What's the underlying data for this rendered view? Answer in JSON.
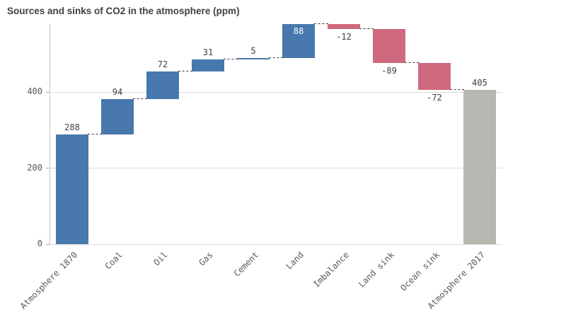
{
  "title": "Sources and sinks of CO2 in the atmosphere (ppm)",
  "colors": {
    "positive": "#4878ad",
    "negative": "#d0697e",
    "total": "#b8b8b3",
    "grid": "#dcdcdc",
    "axis": "#c4c4c4",
    "connector": "#404040",
    "value_label": "#404040",
    "tick_label": "#595959",
    "title_text": "#404040"
  },
  "chart_data": {
    "type": "bar",
    "subtype": "waterfall",
    "title": "Sources and sinks of CO2 in the atmosphere (ppm)",
    "categories": [
      "Atmosphere 1870",
      "Coal",
      "Oil",
      "Gas",
      "Cement",
      "Land",
      "Imbalance",
      "Land sink",
      "Ocean sink",
      "Atmosphere 2017"
    ],
    "values": [
      288,
      94,
      72,
      31,
      5,
      88,
      -12,
      -89,
      -72,
      405
    ],
    "bar_kinds": [
      "positive",
      "positive",
      "positive",
      "positive",
      "positive",
      "positive",
      "negative",
      "negative",
      "negative",
      "total"
    ],
    "value_labels": [
      "288",
      "94",
      "72",
      "31",
      "5",
      "88",
      "-12",
      "-89",
      "-72",
      "405"
    ],
    "cumulative": [
      288,
      382,
      454,
      485,
      490,
      578,
      566,
      477,
      405,
      405
    ],
    "yticks": [
      0,
      200,
      400
    ],
    "ylim": [
      0,
      578
    ],
    "grid": true,
    "legend": false,
    "xlabel": "",
    "ylabel": ""
  }
}
